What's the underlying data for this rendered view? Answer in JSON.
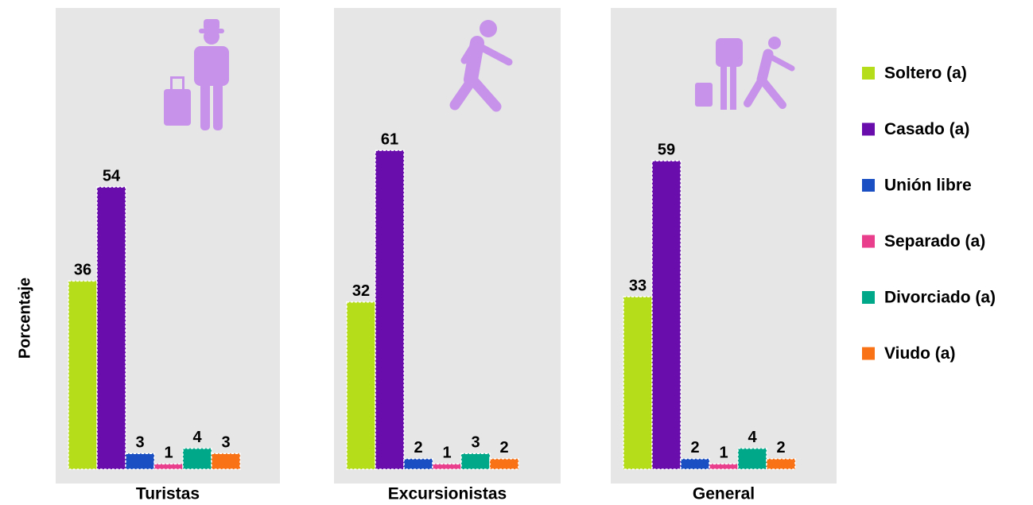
{
  "chart_data": {
    "type": "bar",
    "ylabel": "Porcentaje",
    "categories": [
      "Turistas",
      "Excursionistas",
      "General"
    ],
    "series": [
      {
        "name": "Soltero (a)",
        "color": "#b5dd1a",
        "values": [
          36,
          32,
          33
        ]
      },
      {
        "name": "Casado (a)",
        "color": "#6a0dad",
        "values": [
          54,
          61,
          59
        ]
      },
      {
        "name": "Unión libre",
        "color": "#1a4fc4",
        "values": [
          3,
          2,
          2
        ]
      },
      {
        "name": "Separado (a)",
        "color": "#e83e8c",
        "values": [
          1,
          1,
          1
        ]
      },
      {
        "name": "Divorciado (a)",
        "color": "#00a88a",
        "values": [
          4,
          3,
          4
        ]
      },
      {
        "name": "Viudo (a)",
        "color": "#f97316",
        "values": [
          3,
          2,
          2
        ]
      }
    ],
    "ylim": [
      0,
      70
    ]
  }
}
